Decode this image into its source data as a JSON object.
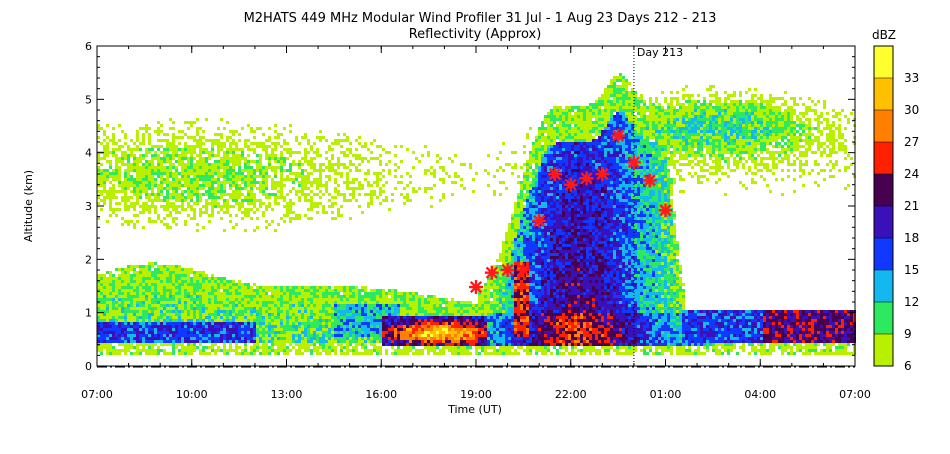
{
  "chart_data": {
    "type": "heatmap",
    "title": "M2HATS 449 MHz Modular Wind Profiler  31 Jul -  1 Aug 23 Days 212 - 213",
    "subtitle": "Reflectivity (Approx)",
    "xlabel": "Time (UT)",
    "ylabel": "Altitude (km)",
    "x_ticks": [
      "07:00",
      "10:00",
      "13:00",
      "16:00",
      "19:00",
      "22:00",
      "01:00",
      "04:00",
      "07:00"
    ],
    "xlim_hours": [
      0,
      24
    ],
    "y_ticks": [
      0,
      1,
      2,
      3,
      4,
      5,
      6
    ],
    "ylim": [
      0,
      6
    ],
    "day_marker": {
      "hours_after_start": 17,
      "label": "Day 213"
    },
    "colorbar": {
      "unit": "dBZ",
      "levels": [
        6,
        9,
        12,
        15,
        18,
        21,
        24,
        27,
        30,
        33
      ],
      "tick_labels": [
        "6",
        "9",
        "12",
        "15",
        "18",
        "21",
        "24",
        "27",
        "30",
        "33"
      ],
      "colors": [
        "#b8f000",
        "#2ee860",
        "#14b8f0",
        "#1038ff",
        "#3a10b8",
        "#480050",
        "#ff2000",
        "#ff8000",
        "#ffc000",
        "#ffff30"
      ]
    },
    "markers": {
      "color": "#ff1a1a",
      "points": [
        {
          "hours": 12.0,
          "km": 1.48
        },
        {
          "hours": 12.5,
          "km": 1.75
        },
        {
          "hours": 13.0,
          "km": 1.8
        },
        {
          "hours": 13.5,
          "km": 1.8
        },
        {
          "hours": 14.0,
          "km": 2.72
        },
        {
          "hours": 14.5,
          "km": 3.6
        },
        {
          "hours": 15.0,
          "km": 3.4
        },
        {
          "hours": 15.5,
          "km": 3.52
        },
        {
          "hours": 16.0,
          "km": 3.6
        },
        {
          "hours": 16.5,
          "km": 4.32
        },
        {
          "hours": 17.0,
          "km": 3.82
        },
        {
          "hours": 17.5,
          "km": 3.48
        },
        {
          "hours": 18.0,
          "km": 2.92
        }
      ]
    }
  }
}
